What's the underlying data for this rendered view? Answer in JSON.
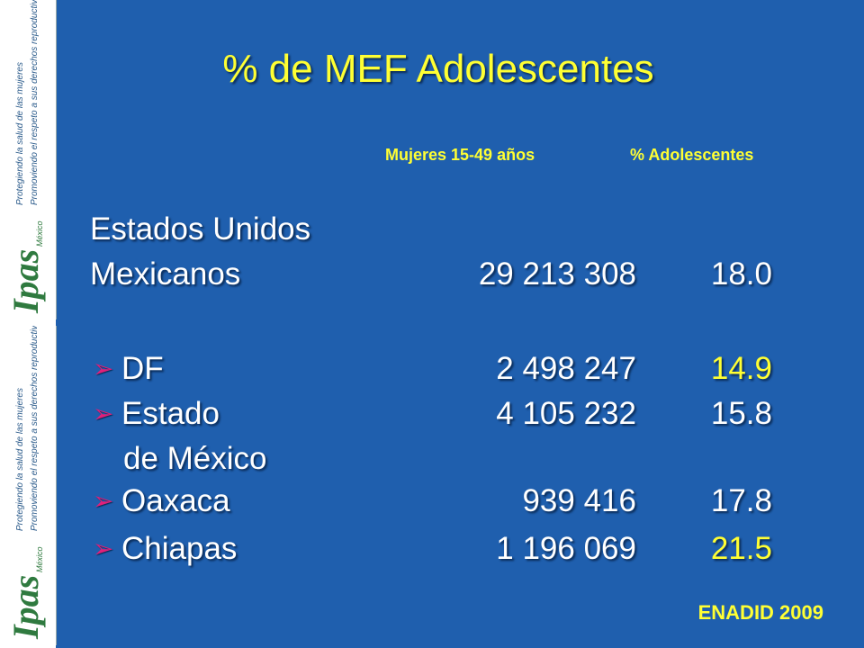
{
  "sidebar": {
    "logos": [
      {
        "brand": "Ipas",
        "country": "México",
        "tagline1": "Protegiendo la salud de las mujeres",
        "tagline2": "Promoviendo el respeto a sus derechos reproductivos"
      },
      {
        "brand": "Ipas",
        "country": "México",
        "tagline1": "Protegiendo la salud de las mujeres",
        "tagline2": "Promoviendo el respeto a sus derechos reproductivos"
      }
    ]
  },
  "slide": {
    "title": "% de MEF Adolescentes",
    "headers": [
      "Mujeres 15-49 años",
      "% Adolescentes"
    ],
    "rows": [
      {
        "label": "Estados Unidos"
      },
      {
        "label": "Mexicanos",
        "women": "29 213 308",
        "percent": "18.0"
      },
      {
        "label": "DF",
        "women": "2 498 247",
        "percent": "14.9",
        "bullet": true,
        "highlight": true
      },
      {
        "label": "Estado",
        "women": "4 105 232",
        "percent": "15.8",
        "bullet": true
      },
      {
        "label": "de México",
        "indent": true
      },
      {
        "label": "Oaxaca",
        "women": "939 416",
        "percent": "17.8",
        "bullet": true
      },
      {
        "label": "Chiapas",
        "women": "1 196 069",
        "percent": "21.5",
        "bullet": true,
        "highlight": true
      }
    ],
    "source": "ENADID 2009"
  }
}
